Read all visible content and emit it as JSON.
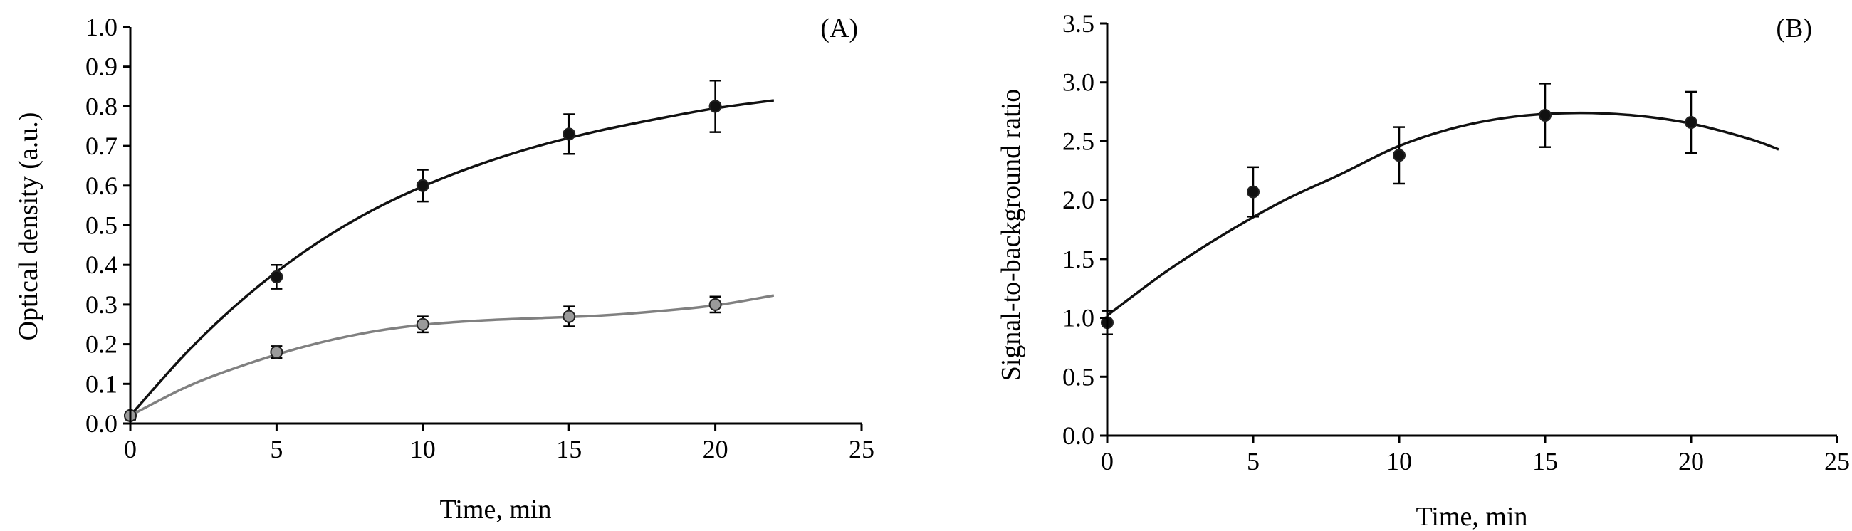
{
  "chart_data": [
    {
      "panel": "(A)",
      "type": "scatter",
      "title": "",
      "xlabel": "Time, min",
      "ylabel": "Optical density (a.u.)",
      "xlim": [
        0,
        25
      ],
      "ylim": [
        0,
        1.0
      ],
      "xticks": [
        "0",
        "5",
        "10",
        "15",
        "20",
        "25"
      ],
      "yticks": [
        "0.0",
        "0.1",
        "0.2",
        "0.3",
        "0.4",
        "0.5",
        "0.6",
        "0.7",
        "0.8",
        "0.9",
        "1.0"
      ],
      "grid": false,
      "legend": "none",
      "series": [
        {
          "color": "#111111",
          "marker_color": "#111111",
          "x": [
            0,
            5,
            10,
            15,
            20
          ],
          "y": [
            0.02,
            0.37,
            0.6,
            0.73,
            0.8
          ],
          "yerr": [
            0.01,
            0.03,
            0.04,
            0.05,
            0.065
          ],
          "trend_x": [
            0,
            2,
            4,
            6,
            8,
            10,
            12,
            14,
            16,
            18,
            20,
            22
          ],
          "trend_y": [
            0.02,
            0.185,
            0.323,
            0.436,
            0.527,
            0.598,
            0.655,
            0.701,
            0.738,
            0.768,
            0.795,
            0.815
          ]
        },
        {
          "color": "#808080",
          "marker_color": "#9a9a9a",
          "x": [
            0,
            5,
            10,
            15,
            20
          ],
          "y": [
            0.02,
            0.18,
            0.25,
            0.27,
            0.3
          ],
          "yerr": [
            0.005,
            0.015,
            0.02,
            0.025,
            0.02
          ],
          "trend_x": [
            0,
            2,
            4,
            6,
            8,
            10,
            12,
            14,
            16,
            18,
            20,
            22
          ],
          "trend_y": [
            0.02,
            0.095,
            0.15,
            0.195,
            0.228,
            0.249,
            0.26,
            0.266,
            0.272,
            0.283,
            0.298,
            0.323
          ]
        }
      ]
    },
    {
      "panel": "(B)",
      "type": "scatter",
      "title": "",
      "xlabel": "Time, min",
      "ylabel": "Signal-to-background ratio",
      "xlim": [
        0,
        25
      ],
      "ylim": [
        0,
        3.5
      ],
      "xticks": [
        "0",
        "5",
        "10",
        "15",
        "20",
        "25"
      ],
      "yticks": [
        "0.0",
        "0.5",
        "1.0",
        "1.5",
        "2.0",
        "2.5",
        "3.0",
        "3.5"
      ],
      "grid": false,
      "legend": "none",
      "series": [
        {
          "color": "#111111",
          "marker_color": "#111111",
          "x": [
            0,
            5,
            10,
            15,
            20
          ],
          "y": [
            0.96,
            2.07,
            2.38,
            2.72,
            2.66
          ],
          "yerr": [
            0.1,
            0.21,
            0.24,
            0.27,
            0.26
          ],
          "trend_x": [
            0,
            2,
            4,
            6,
            8,
            10,
            12,
            14,
            16,
            18,
            20,
            22,
            23
          ],
          "trend_y": [
            1.02,
            1.39,
            1.71,
            1.99,
            2.22,
            2.46,
            2.62,
            2.71,
            2.74,
            2.72,
            2.65,
            2.52,
            2.43
          ]
        }
      ]
    }
  ]
}
